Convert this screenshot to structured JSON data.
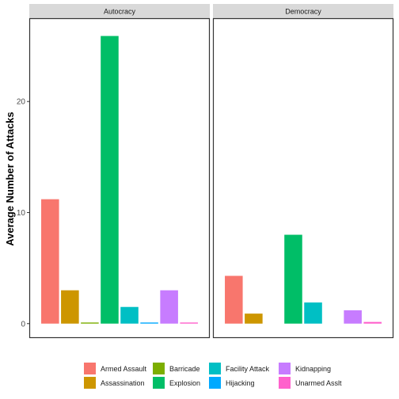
{
  "chart_data": {
    "type": "bar",
    "ylabel": "Average Number of Attacks",
    "xlabel": "",
    "ylim": [
      -1.3,
      27.5
    ],
    "yticks": [
      0,
      10,
      20
    ],
    "grid": false,
    "legend_position": "bottom",
    "categories": [
      "Armed Assault",
      "Assassination",
      "Barricade",
      "Explosion",
      "Facility Attack",
      "Hijacking",
      "Kidnapping",
      "Unarmed Asslt"
    ],
    "colors": [
      "#F8766D",
      "#CD9600",
      "#7CAE00",
      "#00BE67",
      "#00BFC4",
      "#00A9FF",
      "#C77CFF",
      "#FF61CC"
    ],
    "panels": [
      {
        "name": "Autocracy",
        "values": [
          11.2,
          3.0,
          0.1,
          25.9,
          1.5,
          0.1,
          3.0,
          0.1
        ]
      },
      {
        "name": "Democracy",
        "values": [
          4.3,
          0.9,
          0,
          8.0,
          1.9,
          0,
          1.2,
          0.15
        ]
      }
    ]
  }
}
